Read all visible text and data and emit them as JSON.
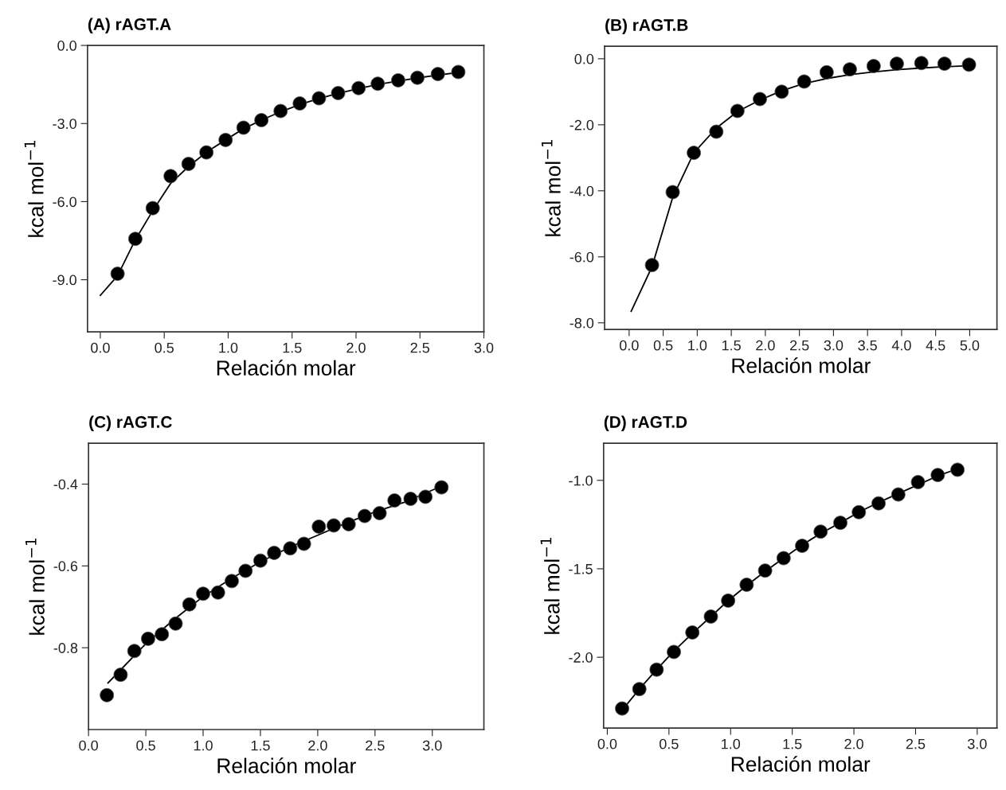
{
  "chart_data": [
    {
      "type": "scatter",
      "title": "(A) rAGT.A",
      "xlabel": "Relación molar",
      "ylabel": "kcal mol$^{−1}$",
      "xlim": [
        -0.1,
        3.0
      ],
      "ylim": [
        -11.0,
        0.0
      ],
      "xticks": [
        {
          "value": 0,
          "label": "0.0"
        },
        0.5,
        {
          "value": 1,
          "label": "1.0"
        },
        1.5,
        {
          "value": 2,
          "label": "2.0"
        },
        2.5,
        {
          "value": 3,
          "label": "3.0"
        }
      ],
      "yticks": [
        {
          "value": 0,
          "label": "0.0"
        },
        {
          "value": -3,
          "label": "-3.0"
        },
        {
          "value": -6,
          "label": "-6.0"
        },
        {
          "value": -9,
          "label": "-9.0"
        }
      ],
      "grid": false,
      "series": [
        {
          "color": "#000000",
          "marker": "circle",
          "x": [
            0.135,
            0.274,
            0.41,
            0.55,
            0.69,
            0.83,
            0.98,
            1.12,
            1.26,
            1.41,
            1.56,
            1.71,
            1.86,
            2.02,
            2.17,
            2.33,
            2.48,
            2.64,
            2.8
          ],
          "values": [
            -8.77,
            -7.43,
            -6.25,
            -5.02,
            -4.55,
            -4.11,
            -3.63,
            -3.16,
            -2.87,
            -2.52,
            -2.23,
            -2.03,
            -1.83,
            -1.64,
            -1.47,
            -1.34,
            -1.24,
            -1.1,
            -1.02
          ]
        },
        {
          "type": "line",
          "color": "#000000",
          "marker": "none",
          "line_style": "solid",
          "x": [
            0.0,
            0.135,
            0.27,
            0.41,
            0.55,
            0.69,
            0.83,
            0.98,
            1.12,
            1.26,
            1.41,
            1.56,
            1.71,
            1.86,
            2.02,
            2.17,
            2.33,
            2.48,
            2.64,
            2.8
          ],
          "values": [
            -9.6,
            -8.85,
            -7.5,
            -6.35,
            -5.3,
            -4.65,
            -4.1,
            -3.63,
            -3.2,
            -2.87,
            -2.55,
            -2.27,
            -2.04,
            -1.84,
            -1.66,
            -1.5,
            -1.37,
            -1.25,
            -1.14,
            -1.04
          ]
        }
      ]
    },
    {
      "type": "scatter",
      "title": "(B) rAGT.B",
      "xlabel": "Relación molar",
      "ylabel": "kcal mol$^{−1}$",
      "xlim": [
        -0.36,
        5.4
      ],
      "ylim": [
        -8.2,
        0.38
      ],
      "xticks": [
        {
          "value": 0,
          "label": "0.0"
        },
        0.5,
        {
          "value": 1,
          "label": "1.0"
        },
        1.5,
        {
          "value": 2,
          "label": "2.0"
        },
        2.5,
        {
          "value": 3,
          "label": "3.0"
        },
        3.5,
        {
          "value": 4,
          "label": "4.0"
        },
        4.5,
        {
          "value": 5,
          "label": "5.0"
        }
      ],
      "yticks": [
        {
          "value": 0,
          "label": "0.0"
        },
        {
          "value": -2,
          "label": "-2.0"
        },
        {
          "value": -4,
          "label": "-4.0"
        },
        {
          "value": -6,
          "label": "-6.0"
        },
        {
          "value": -8,
          "label": "-8.0"
        }
      ],
      "grid": false,
      "series": [
        {
          "color": "#000000",
          "marker": "circle",
          "x": [
            0.336,
            0.64,
            0.95,
            1.28,
            1.59,
            1.92,
            2.24,
            2.57,
            2.9,
            3.24,
            3.59,
            3.93,
            4.29,
            4.63,
            4.99
          ],
          "values": [
            -6.25,
            -4.04,
            -2.85,
            -2.21,
            -1.58,
            -1.22,
            -1.0,
            -0.69,
            -0.41,
            -0.32,
            -0.22,
            -0.15,
            -0.13,
            -0.15,
            -0.18
          ]
        },
        {
          "type": "line",
          "color": "#000000",
          "marker": "none",
          "line_style": "solid",
          "x": [
            0.03,
            0.336,
            0.64,
            0.95,
            1.28,
            1.59,
            1.92,
            2.24,
            2.57,
            2.9,
            3.24,
            3.59,
            3.93,
            4.29,
            4.63,
            4.99
          ],
          "values": [
            -7.65,
            -6.3,
            -4.2,
            -2.85,
            -2.1,
            -1.6,
            -1.25,
            -0.97,
            -0.75,
            -0.6,
            -0.48,
            -0.4,
            -0.33,
            -0.28,
            -0.24,
            -0.21
          ]
        }
      ]
    },
    {
      "type": "scatter",
      "title": "(C) rAGT.C",
      "xlabel": "Relación molar",
      "ylabel": "kcal mol$^{−1}$",
      "xlim": [
        0.0,
        3.45
      ],
      "ylim": [
        -1.0,
        -0.3
      ],
      "xticks": [
        {
          "value": 0,
          "label": "0.0"
        },
        0.5,
        {
          "value": 1,
          "label": "1.0"
        },
        1.5,
        {
          "value": 2,
          "label": "2.0"
        },
        2.5,
        {
          "value": 3,
          "label": "3.0"
        }
      ],
      "yticks": [
        -0.4,
        -0.6,
        -0.8
      ],
      "grid": false,
      "series": [
        {
          "color": "#000000",
          "marker": "circle",
          "x": [
            0.16,
            0.28,
            0.4,
            0.52,
            0.64,
            0.76,
            0.88,
            1.0,
            1.13,
            1.25,
            1.37,
            1.5,
            1.62,
            1.76,
            1.88,
            2.01,
            2.14,
            2.27,
            2.41,
            2.54,
            2.67,
            2.81,
            2.94,
            3.08
          ],
          "values": [
            -0.916,
            -0.866,
            -0.808,
            -0.778,
            -0.767,
            -0.741,
            -0.694,
            -0.668,
            -0.665,
            -0.637,
            -0.612,
            -0.587,
            -0.568,
            -0.557,
            -0.546,
            -0.504,
            -0.501,
            -0.498,
            -0.478,
            -0.471,
            -0.44,
            -0.436,
            -0.431,
            -0.408
          ]
        },
        {
          "type": "line",
          "color": "#000000",
          "marker": "none",
          "line_style": "solid",
          "x": [
            0.17,
            0.5,
            0.75,
            1.0,
            1.25,
            1.5,
            1.75,
            2.0,
            2.25,
            2.5,
            2.75,
            3.08
          ],
          "values": [
            -0.886,
            -0.79,
            -0.73,
            -0.675,
            -0.63,
            -0.59,
            -0.555,
            -0.525,
            -0.495,
            -0.468,
            -0.445,
            -0.405
          ]
        }
      ]
    },
    {
      "type": "scatter",
      "title": "(D) rAGT.D",
      "xlabel": "Relación molar",
      "ylabel": "kcal mol$^{−1}$",
      "xlim": [
        -0.03,
        3.16
      ],
      "ylim": [
        -2.4,
        -0.79
      ],
      "xticks": [
        {
          "value": 0,
          "label": "0.0"
        },
        0.5,
        {
          "value": 1,
          "label": "1.0"
        },
        1.5,
        {
          "value": 2,
          "label": "2.0"
        },
        2.5,
        {
          "value": 3,
          "label": "3.0"
        }
      ],
      "yticks": [
        {
          "value": -1,
          "label": "-1.0"
        },
        -1.5,
        {
          "value": -2,
          "label": "-2.0"
        }
      ],
      "grid": false,
      "series": [
        {
          "color": "#000000",
          "marker": "circle",
          "x": [
            0.12,
            0.26,
            0.4,
            0.54,
            0.69,
            0.84,
            0.98,
            1.13,
            1.28,
            1.43,
            1.58,
            1.73,
            1.89,
            2.04,
            2.2,
            2.36,
            2.52,
            2.68,
            2.84
          ],
          "values": [
            -2.29,
            -2.18,
            -2.07,
            -1.97,
            -1.86,
            -1.77,
            -1.68,
            -1.59,
            -1.51,
            -1.44,
            -1.37,
            -1.29,
            -1.24,
            -1.18,
            -1.13,
            -1.08,
            -1.01,
            -0.97,
            -0.94
          ]
        },
        {
          "type": "line",
          "color": "#000000",
          "marker": "none",
          "line_style": "solid",
          "x": [
            0.12,
            0.26,
            0.4,
            0.54,
            0.69,
            0.84,
            0.98,
            1.13,
            1.28,
            1.43,
            1.58,
            1.73,
            1.89,
            2.04,
            2.2,
            2.36,
            2.52,
            2.68,
            2.84
          ],
          "values": [
            -2.3,
            -2.18,
            -2.07,
            -1.965,
            -1.865,
            -1.77,
            -1.68,
            -1.595,
            -1.515,
            -1.44,
            -1.365,
            -1.3,
            -1.24,
            -1.18,
            -1.125,
            -1.075,
            -1.025,
            -0.975,
            -0.935
          ]
        }
      ]
    }
  ]
}
